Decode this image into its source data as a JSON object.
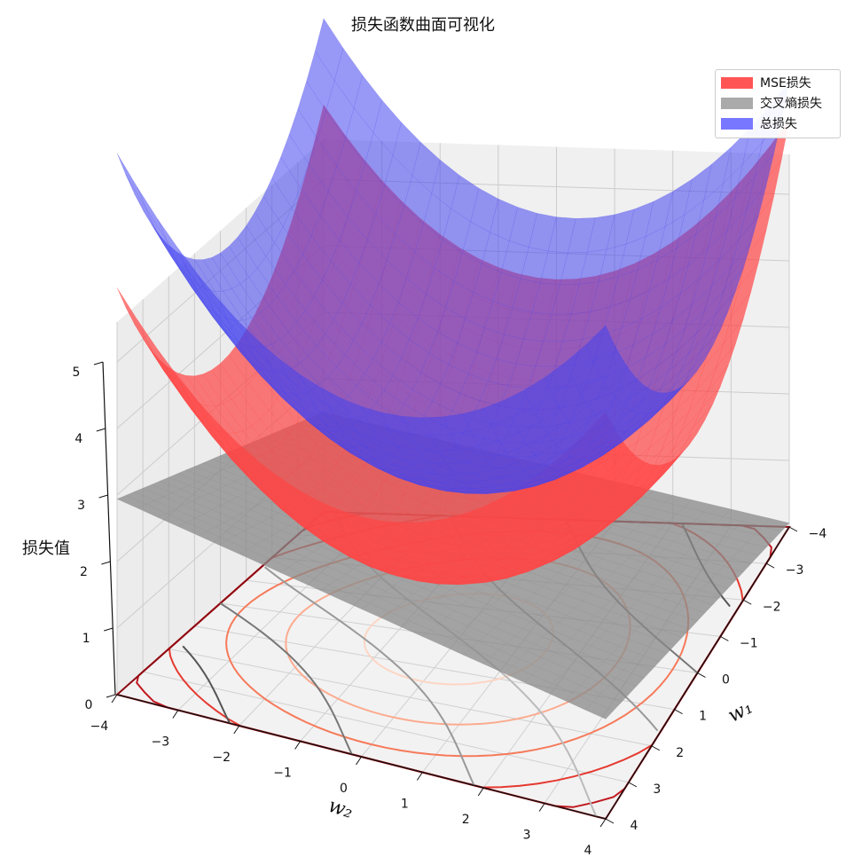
{
  "chart_data": {
    "type": "surface3d",
    "title": "损失函数曲面可视化",
    "xlabel": "w₁",
    "ylabel": "w₂",
    "zlabel": "损失值",
    "xlim": [
      -4,
      4
    ],
    "ylim": [
      -4,
      4
    ],
    "zlim": [
      0,
      5
    ],
    "x_ticks": [
      "−4",
      "−3",
      "−2",
      "−1",
      "0",
      "1",
      "2",
      "3",
      "4"
    ],
    "y_ticks": [
      "−4",
      "−3",
      "−2",
      "−1",
      "0",
      "1",
      "2",
      "3",
      "4"
    ],
    "z_ticks": [
      "0",
      "1",
      "2",
      "3",
      "4",
      "5"
    ],
    "grid": true,
    "legend_position": "top-right",
    "series": [
      {
        "name": "MSE损失",
        "color": "#ff4444",
        "surface": "bowl",
        "min_value": 1.2
      },
      {
        "name": "交叉熵损失",
        "color": "#888888",
        "surface": "plane",
        "min_value": 0.9
      },
      {
        "name": "总损失",
        "color": "#4444ee",
        "surface": "bowl",
        "min_value": 2.5
      }
    ],
    "contour_projection": {
      "offset": 0,
      "colormaps": [
        "Reds",
        "Greys"
      ]
    }
  },
  "legend": {
    "items": [
      {
        "label": "MSE损失",
        "color": "#ff5555"
      },
      {
        "label": "交叉熵损失",
        "color": "#aaaaaa"
      },
      {
        "label": "总损失",
        "color": "#7777ff"
      }
    ]
  }
}
